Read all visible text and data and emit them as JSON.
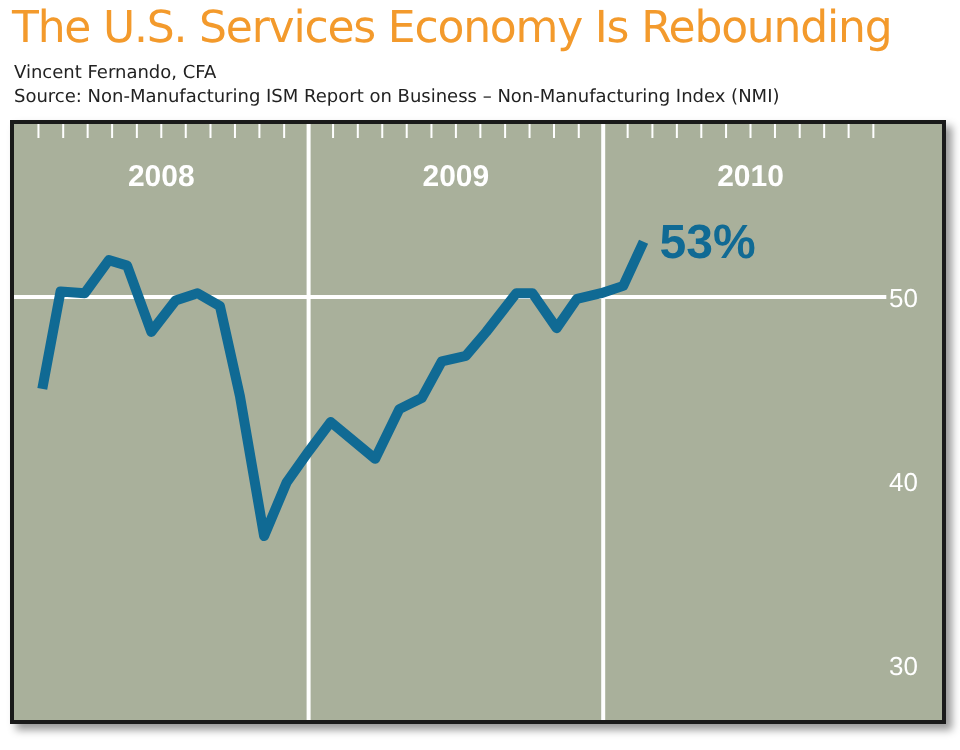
{
  "chart_data": {
    "type": "line",
    "title": "The U.S. Services Economy Is Rebounding",
    "subtitle": "Vincent Fernando, CFA",
    "annotations": [
      "Source:  Non-Manufacturing ISM Report on Business – Non-Manufacturing Index (NMI)",
      {
        "text": "53%",
        "x": 2010.137,
        "y": 53
      }
    ],
    "x": [
      2008.096,
      2008.158,
      2008.24,
      2008.322,
      2008.384,
      2008.466,
      2008.548,
      2008.623,
      2008.699,
      2008.767,
      2008.849,
      2008.925,
      2009.0,
      2009.075,
      2009.226,
      2009.308,
      2009.384,
      2009.452,
      2009.534,
      2009.603,
      2009.705,
      2009.76,
      2009.842,
      2009.911,
      2009.993,
      2010.068,
      2010.137
    ],
    "series": [
      {
        "color": "#106a94",
        "values": [
          45.0,
          50.3,
          50.2,
          52.0,
          51.7,
          48.1,
          49.8,
          50.2,
          49.5,
          44.6,
          37.0,
          39.9,
          41.6,
          43.2,
          41.2,
          43.9,
          44.5,
          46.5,
          46.8,
          48.1,
          50.2,
          50.2,
          48.3,
          49.9,
          50.2,
          50.6,
          53
        ]
      }
    ],
    "xlim": [
      2008,
      2011.15
    ],
    "ylim": [
      27,
      59.4
    ],
    "xticks": [
      {
        "value": 2008.083,
        "label": null
      },
      {
        "value": 2008.167,
        "label": null
      },
      {
        "value": 2008.25,
        "label": null
      },
      {
        "value": 2008.333,
        "label": null
      },
      {
        "value": 2008.417,
        "label": null
      },
      {
        "value": 2008.5,
        "label": "2008"
      },
      {
        "value": 2008.583,
        "label": null
      },
      {
        "value": 2008.667,
        "label": null
      },
      {
        "value": 2008.75,
        "label": null
      },
      {
        "value": 2008.833,
        "label": null
      },
      {
        "value": 2008.917,
        "label": null
      },
      {
        "value": 2009.083,
        "label": null
      },
      {
        "value": 2009.167,
        "label": null
      },
      {
        "value": 2009.25,
        "label": null
      },
      {
        "value": 2009.333,
        "label": null
      },
      {
        "value": 2009.417,
        "label": null
      },
      {
        "value": 2009.5,
        "label": "2009"
      },
      {
        "value": 2009.583,
        "label": null
      },
      {
        "value": 2009.667,
        "label": null
      },
      {
        "value": 2009.75,
        "label": null
      },
      {
        "value": 2009.833,
        "label": null
      },
      {
        "value": 2009.917,
        "label": null
      },
      {
        "value": 2010.083,
        "label": null
      },
      {
        "value": 2010.167,
        "label": null
      },
      {
        "value": 2010.25,
        "label": null
      },
      {
        "value": 2010.333,
        "label": null
      },
      {
        "value": 2010.417,
        "label": null
      },
      {
        "value": 2010.5,
        "label": "2010"
      },
      {
        "value": 2010.583,
        "label": null
      },
      {
        "value": 2010.667,
        "label": null
      },
      {
        "value": 2010.75,
        "label": null
      },
      {
        "value": 2010.833,
        "label": null
      },
      {
        "value": 2010.917,
        "label": null
      }
    ],
    "yticks": [
      30,
      40,
      50
    ],
    "ref_lines": [
      {
        "axis": "x",
        "value": 2009,
        "color": "#ffffff"
      },
      {
        "axis": "x",
        "value": 2010,
        "color": "#ffffff"
      },
      {
        "axis": "y",
        "value": 50,
        "color": "#ffffff"
      }
    ],
    "marker": "none",
    "line_style": "solid"
  }
}
